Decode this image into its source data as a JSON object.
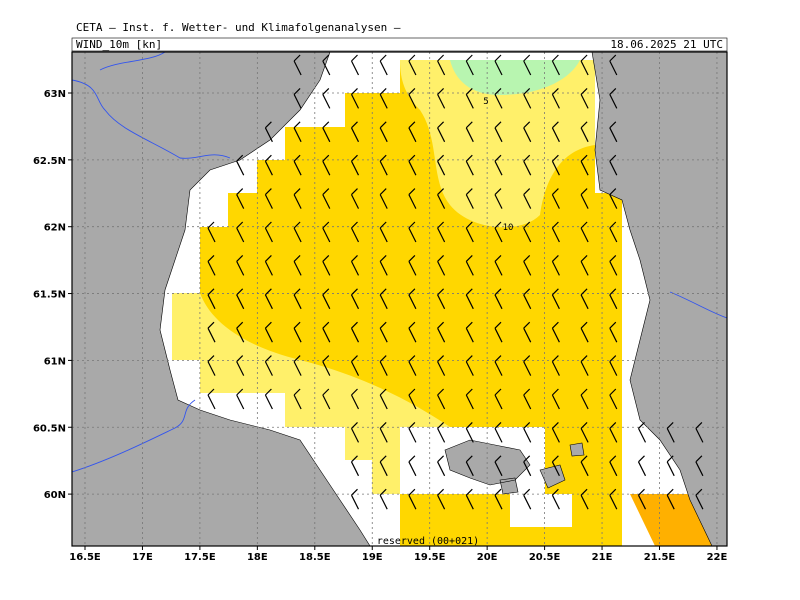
{
  "header": {
    "title": "CETA – Inst. f. Wetter- und Klimafolgenanalysen –",
    "parameter": "WIND_10m [kn]",
    "valid_time": "18.06.2025 21 UTC"
  },
  "axes": {
    "x_ticks": [
      "16.5E",
      "17E",
      "17.5E",
      "18E",
      "18.5E",
      "19E",
      "19.5E",
      "20E",
      "20.5E",
      "21E",
      "21.5E",
      "22E"
    ],
    "y_ticks": [
      "63N",
      "62.5N",
      "62N",
      "61.5N",
      "61N",
      "60.5N",
      "60N"
    ]
  },
  "contour_labels": [
    "5",
    "10"
  ],
  "footer": "reserved (00+021)"
}
